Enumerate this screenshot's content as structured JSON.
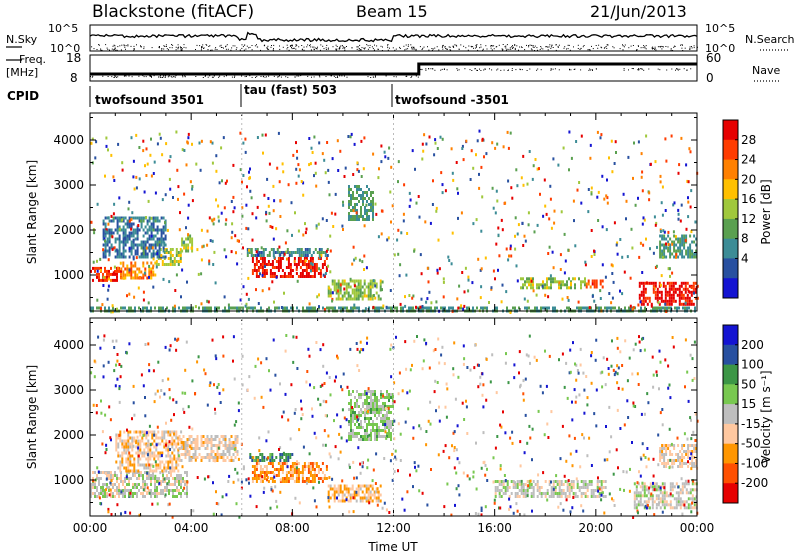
{
  "header": {
    "station": "Blackstone (fitACF)",
    "beam": "Beam 15",
    "date": "21/Jun/2013"
  },
  "top_panels": {
    "nsky_label": "N.Sky",
    "nsearch_label": "N.Search",
    "noise_ticks": [
      "10^5",
      "10^0"
    ],
    "freq_label": "Freq.",
    "freq_unit": "[MHz]",
    "freq_ticks": [
      "18",
      "8"
    ],
    "nave_label": "Nave",
    "nave_ticks": [
      "60",
      "0"
    ],
    "cpid_label": "CPID",
    "cpid_segments": [
      {
        "label": "twofsound 3501",
        "start_h": 0.0
      },
      {
        "label": "tau (fast) 503",
        "start_h": 6.0
      },
      {
        "label": "twofsound -3501",
        "start_h": 12.0
      }
    ]
  },
  "chart_data": [
    {
      "type": "heatmap",
      "name": "power",
      "xlabel": "",
      "ylabel": "Slant Range [km]",
      "xlim": [
        0,
        24
      ],
      "ylim": [
        200,
        4600
      ],
      "yticks": [
        "4000",
        "3000",
        "2000",
        "1000"
      ],
      "colorbar": {
        "label": "Power [dB]",
        "ticks": [
          "28",
          "24",
          "20",
          "16",
          "12",
          "8",
          "4"
        ],
        "range": [
          0,
          30
        ]
      },
      "bands": [
        {
          "x0": 0.0,
          "x1": 1.2,
          "y0": 880,
          "y1": 1180,
          "value": 26
        },
        {
          "x0": 1.2,
          "x1": 2.6,
          "y0": 950,
          "y1": 1300,
          "value": 22
        },
        {
          "x0": 2.6,
          "x1": 3.6,
          "y0": 1200,
          "y1": 1600,
          "value": 16
        },
        {
          "x0": 3.6,
          "x1": 4.0,
          "y0": 1500,
          "y1": 1900,
          "value": 14
        },
        {
          "x0": 0.5,
          "x1": 3.0,
          "y0": 1400,
          "y1": 2300,
          "value": 7
        },
        {
          "x0": 6.4,
          "x1": 9.4,
          "y0": 950,
          "y1": 1400,
          "value": 28
        },
        {
          "x0": 6.2,
          "x1": 9.4,
          "y0": 1400,
          "y1": 1600,
          "value": 9
        },
        {
          "x0": 9.4,
          "x1": 11.5,
          "y0": 450,
          "y1": 900,
          "value": 14
        },
        {
          "x0": 10.2,
          "x1": 11.2,
          "y0": 2200,
          "y1": 3000,
          "value": 10
        },
        {
          "x0": 17.0,
          "x1": 19.6,
          "y0": 700,
          "y1": 950,
          "value": 14
        },
        {
          "x0": 19.6,
          "x1": 20.3,
          "y0": 750,
          "y1": 900,
          "value": 24
        },
        {
          "x0": 21.7,
          "x1": 24.0,
          "y0": 380,
          "y1": 850,
          "value": 28
        },
        {
          "x0": 22.5,
          "x1": 24.0,
          "y0": 1400,
          "y1": 1900,
          "value": 10
        },
        {
          "x0": 0.0,
          "x1": 24.0,
          "y0": 220,
          "y1": 300,
          "value": 10
        }
      ]
    },
    {
      "type": "heatmap",
      "name": "velocity",
      "xlabel": "Time UT",
      "ylabel": "Slant Range [km]",
      "xlim": [
        0,
        24
      ],
      "ylim": [
        200,
        4600
      ],
      "xticks": [
        "00:00",
        "04:00",
        "08:00",
        "12:00",
        "16:00",
        "20:00",
        "00:00"
      ],
      "yticks": [
        "4000",
        "3000",
        "2000",
        "1000"
      ],
      "colorbar": {
        "label": "Velocity [m s⁻¹]",
        "ticks": [
          "200",
          "100",
          "50",
          "15",
          "-15",
          "-50",
          "-100",
          "-200"
        ],
        "range": [
          -250,
          250
        ]
      },
      "bands": [
        {
          "x0": 0.0,
          "x1": 3.8,
          "y0": 600,
          "y1": 1200,
          "value": 0
        },
        {
          "x0": 1.0,
          "x1": 3.5,
          "y0": 1200,
          "y1": 2100,
          "value": -60
        },
        {
          "x0": 3.5,
          "x1": 5.8,
          "y0": 1400,
          "y1": 2000,
          "value": -40
        },
        {
          "x0": 6.4,
          "x1": 9.4,
          "y0": 950,
          "y1": 1400,
          "value": -110
        },
        {
          "x0": 6.3,
          "x1": 8.0,
          "y0": 1400,
          "y1": 1600,
          "value": 120
        },
        {
          "x0": 9.4,
          "x1": 11.5,
          "y0": 500,
          "y1": 900,
          "value": -70
        },
        {
          "x0": 10.2,
          "x1": 12.0,
          "y0": 1900,
          "y1": 3000,
          "value": 40
        },
        {
          "x0": 16.0,
          "x1": 20.4,
          "y0": 600,
          "y1": 1000,
          "value": 0
        },
        {
          "x0": 21.5,
          "x1": 24.0,
          "y0": 400,
          "y1": 950,
          "value": 0
        },
        {
          "x0": 22.5,
          "x1": 24.0,
          "y0": 1300,
          "y1": 1800,
          "value": -40
        }
      ]
    }
  ],
  "colors": {
    "power_scale": [
      "#1414d2",
      "#2850a0",
      "#3c8c96",
      "#5aa050",
      "#a0c83c",
      "#ffc000",
      "#ff8000",
      "#ff3c00",
      "#e60000"
    ],
    "velocity_scale": [
      "#e60000",
      "#ff5000",
      "#ff9600",
      "#ffc8a0",
      "#bebebe",
      "#78c850",
      "#3c9646",
      "#2850a0",
      "#1414d2"
    ]
  }
}
